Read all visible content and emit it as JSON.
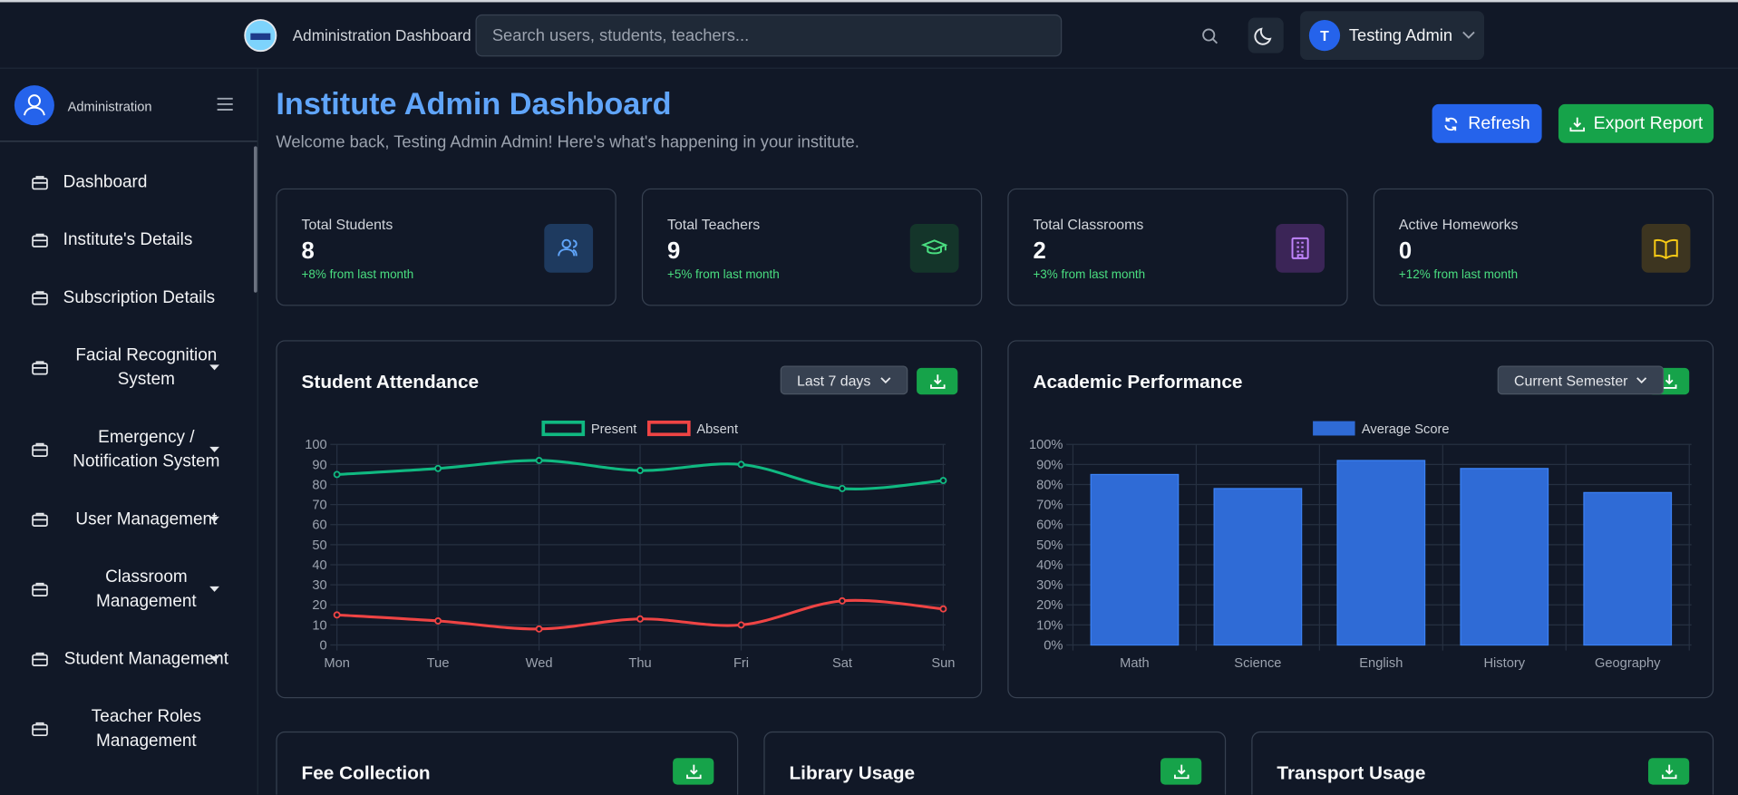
{
  "header": {
    "title": "Administration Dashboard",
    "search_placeholder": "Search users, students, teachers...",
    "user_initial": "T",
    "user_name": "Testing Admin"
  },
  "sidebar": {
    "role": "Administration",
    "items": [
      {
        "label": "Dashboard",
        "dropdown": false
      },
      {
        "label": "Institute's Details",
        "dropdown": false
      },
      {
        "label": "Subscription Details",
        "dropdown": false
      },
      {
        "label": "Facial Recognition System",
        "dropdown": true
      },
      {
        "label": "Emergency / Notification System",
        "dropdown": true
      },
      {
        "label": "User Management",
        "dropdown": true
      },
      {
        "label": "Classroom Management",
        "dropdown": true
      },
      {
        "label": "Student Management",
        "dropdown": true
      },
      {
        "label": "Teacher Roles Management",
        "dropdown": false
      }
    ]
  },
  "page": {
    "title": "Institute Admin Dashboard",
    "subtitle": "Welcome back, Testing Admin Admin! Here's what's happening in your institute.",
    "buttons": [
      "Refresh",
      "Export Report"
    ]
  },
  "stats": [
    {
      "label": "Total Students",
      "value": 8,
      "change": "+8% from last month"
    },
    {
      "label": "Total Teachers",
      "value": 9,
      "change": "+5% from last month"
    },
    {
      "label": "Total Classrooms",
      "value": 2,
      "change": "+3% from last month"
    },
    {
      "label": "Active Homeworks",
      "value": 0,
      "change": "+12% from last month"
    }
  ],
  "chart_data": [
    {
      "type": "line",
      "title": "Student Attendance",
      "filter": "Last 7 days",
      "categories": [
        "Mon",
        "Tue",
        "Wed",
        "Thu",
        "Fri",
        "Sat",
        "Sun"
      ],
      "series": [
        {
          "name": "Present",
          "color": "#10b981",
          "values": [
            85,
            88,
            92,
            87,
            90,
            78,
            82
          ]
        },
        {
          "name": "Absent",
          "color": "#ef4444",
          "values": [
            15,
            12,
            8,
            13,
            10,
            22,
            18
          ]
        }
      ],
      "ylim": [
        0,
        100
      ],
      "yticks": [
        0,
        10,
        20,
        30,
        40,
        50,
        60,
        70,
        80,
        90,
        100
      ],
      "grid": true,
      "legend": "top"
    },
    {
      "type": "bar",
      "title": "Academic Performance",
      "filter": "Current Semester",
      "categories": [
        "Math",
        "Science",
        "English",
        "History",
        "Geography"
      ],
      "series": [
        {
          "name": "Average Score",
          "color": "#2f6bd6",
          "values": [
            85,
            78,
            92,
            88,
            76
          ]
        }
      ],
      "ylim": [
        0,
        100
      ],
      "yticks": [
        {
          "value": 0,
          "label": "0%"
        },
        {
          "value": 10,
          "label": "10%"
        },
        {
          "value": 20,
          "label": "20%"
        },
        {
          "value": 30,
          "label": "30%"
        },
        {
          "value": 40,
          "label": "40%"
        },
        {
          "value": 50,
          "label": "50%"
        },
        {
          "value": 60,
          "label": "60%"
        },
        {
          "value": 70,
          "label": "70%"
        },
        {
          "value": 80,
          "label": "80%"
        },
        {
          "value": 90,
          "label": "90%"
        },
        {
          "value": 100,
          "label": "100%"
        }
      ],
      "grid": true,
      "legend": "top"
    }
  ],
  "sections": [
    "Fee Collection",
    "Library Usage",
    "Transport Usage"
  ]
}
